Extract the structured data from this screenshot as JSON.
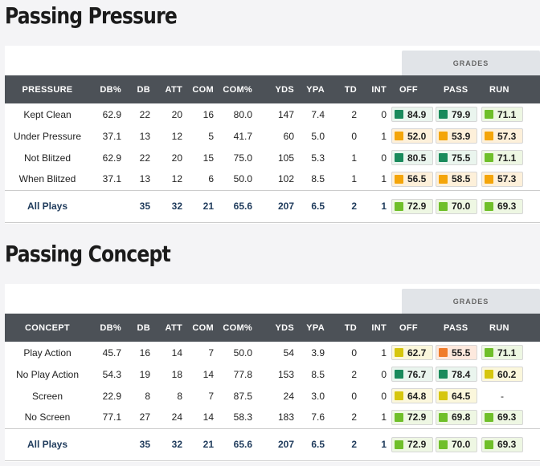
{
  "sections": [
    {
      "title": "Passing Pressure",
      "grades_label": "GRADES",
      "columns": [
        "PRESSURE",
        "DB%",
        "DB",
        "ATT",
        "COM",
        "COM%",
        "YDS",
        "YPA",
        "TD",
        "INT",
        "OFF",
        "PASS",
        "RUN"
      ],
      "rows": [
        {
          "label": "Kept Clean",
          "dbp": "62.9",
          "db": "22",
          "att": "20",
          "com": "16",
          "comp": "80.0",
          "yds": "147",
          "ypa": "7.4",
          "td": "2",
          "int": "0",
          "off": {
            "v": "84.9",
            "tier": "elite"
          },
          "pass": {
            "v": "79.9",
            "tier": "elite"
          },
          "run": {
            "v": "71.1",
            "tier": "high"
          }
        },
        {
          "label": "Under Pressure",
          "dbp": "37.1",
          "db": "13",
          "att": "12",
          "com": "5",
          "comp": "41.7",
          "yds": "60",
          "ypa": "5.0",
          "td": "0",
          "int": "1",
          "off": {
            "v": "52.0",
            "tier": "below"
          },
          "pass": {
            "v": "53.9",
            "tier": "below"
          },
          "run": {
            "v": "57.3",
            "tier": "below"
          }
        },
        {
          "label": "Not Blitzed",
          "dbp": "62.9",
          "db": "22",
          "att": "20",
          "com": "15",
          "comp": "75.0",
          "yds": "105",
          "ypa": "5.3",
          "td": "1",
          "int": "0",
          "off": {
            "v": "80.5",
            "tier": "elite"
          },
          "pass": {
            "v": "75.5",
            "tier": "elite"
          },
          "run": {
            "v": "71.1",
            "tier": "high"
          }
        },
        {
          "label": "When Blitzed",
          "dbp": "37.1",
          "db": "13",
          "att": "12",
          "com": "6",
          "comp": "50.0",
          "yds": "102",
          "ypa": "8.5",
          "td": "1",
          "int": "1",
          "off": {
            "v": "56.5",
            "tier": "below"
          },
          "pass": {
            "v": "58.5",
            "tier": "below"
          },
          "run": {
            "v": "57.3",
            "tier": "below"
          }
        }
      ],
      "summary": {
        "label": "All Plays",
        "dbp": "",
        "db": "35",
        "att": "32",
        "com": "21",
        "comp": "65.6",
        "yds": "207",
        "ypa": "6.5",
        "td": "2",
        "int": "1",
        "off": {
          "v": "72.9",
          "tier": "high"
        },
        "pass": {
          "v": "70.0",
          "tier": "high"
        },
        "run": {
          "v": "69.3",
          "tier": "high"
        }
      }
    },
    {
      "title": "Passing Concept",
      "grades_label": "GRADES",
      "columns": [
        "CONCEPT",
        "DB%",
        "DB",
        "ATT",
        "COM",
        "COM%",
        "YDS",
        "YPA",
        "TD",
        "INT",
        "OFF",
        "PASS",
        "RUN"
      ],
      "rows": [
        {
          "label": "Play Action",
          "dbp": "45.7",
          "db": "16",
          "att": "14",
          "com": "7",
          "comp": "50.0",
          "yds": "54",
          "ypa": "3.9",
          "td": "0",
          "int": "1",
          "off": {
            "v": "62.7",
            "tier": "avg"
          },
          "pass": {
            "v": "55.5",
            "tier": "low"
          },
          "run": {
            "v": "71.1",
            "tier": "high"
          }
        },
        {
          "label": "No Play Action",
          "dbp": "54.3",
          "db": "19",
          "att": "18",
          "com": "14",
          "comp": "77.8",
          "yds": "153",
          "ypa": "8.5",
          "td": "2",
          "int": "0",
          "off": {
            "v": "76.7",
            "tier": "elite"
          },
          "pass": {
            "v": "78.4",
            "tier": "elite"
          },
          "run": {
            "v": "60.2",
            "tier": "avg"
          }
        },
        {
          "label": "Screen",
          "dbp": "22.9",
          "db": "8",
          "att": "8",
          "com": "7",
          "comp": "87.5",
          "yds": "24",
          "ypa": "3.0",
          "td": "0",
          "int": "0",
          "off": {
            "v": "64.8",
            "tier": "avg"
          },
          "pass": {
            "v": "64.5",
            "tier": "avg"
          },
          "run": {
            "v": "-",
            "tier": "none"
          }
        },
        {
          "label": "No Screen",
          "dbp": "77.1",
          "db": "27",
          "att": "24",
          "com": "14",
          "comp": "58.3",
          "yds": "183",
          "ypa": "7.6",
          "td": "2",
          "int": "1",
          "off": {
            "v": "72.9",
            "tier": "high"
          },
          "pass": {
            "v": "69.8",
            "tier": "high"
          },
          "run": {
            "v": "69.3",
            "tier": "high"
          }
        }
      ],
      "summary": {
        "label": "All Plays",
        "dbp": "",
        "db": "35",
        "att": "32",
        "com": "21",
        "comp": "65.6",
        "yds": "207",
        "ypa": "6.5",
        "td": "2",
        "int": "1",
        "off": {
          "v": "72.9",
          "tier": "high"
        },
        "pass": {
          "v": "70.0",
          "tier": "high"
        },
        "run": {
          "v": "69.3",
          "tier": "high"
        }
      }
    }
  ],
  "tier_colors": {
    "elite": "#1a8a5c",
    "high": "#6fbf2a",
    "avg": "#d6c60e",
    "below": "#f4a50a",
    "low": "#f07c2a"
  }
}
